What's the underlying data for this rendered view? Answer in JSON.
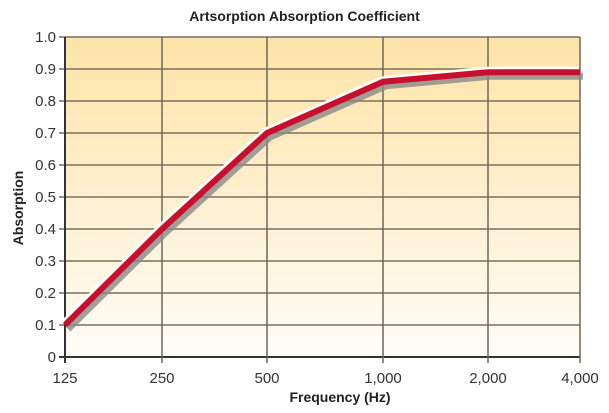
{
  "chart_data": {
    "type": "line",
    "title": "Artsorption Absorption Coefficient",
    "xlabel": "Frequency (Hz)",
    "ylabel": "Absorption",
    "categories": [
      "125",
      "250",
      "500",
      "1,000",
      "2,000",
      "4,000"
    ],
    "series": [
      {
        "name": "Artsorption",
        "values": [
          0.1,
          0.4,
          0.7,
          0.86,
          0.89,
          0.89
        ],
        "color": "#c8102e"
      }
    ],
    "yticks": [
      "0",
      "0.1",
      "0.2",
      "0.3",
      "0.4",
      "0.5",
      "0.6",
      "0.7",
      "0.8",
      "0.9",
      "1.0"
    ],
    "ylim": [
      0,
      1.0
    ],
    "grid": true,
    "background_gradient": [
      "#fde3a7",
      "#fffdf8"
    ]
  }
}
